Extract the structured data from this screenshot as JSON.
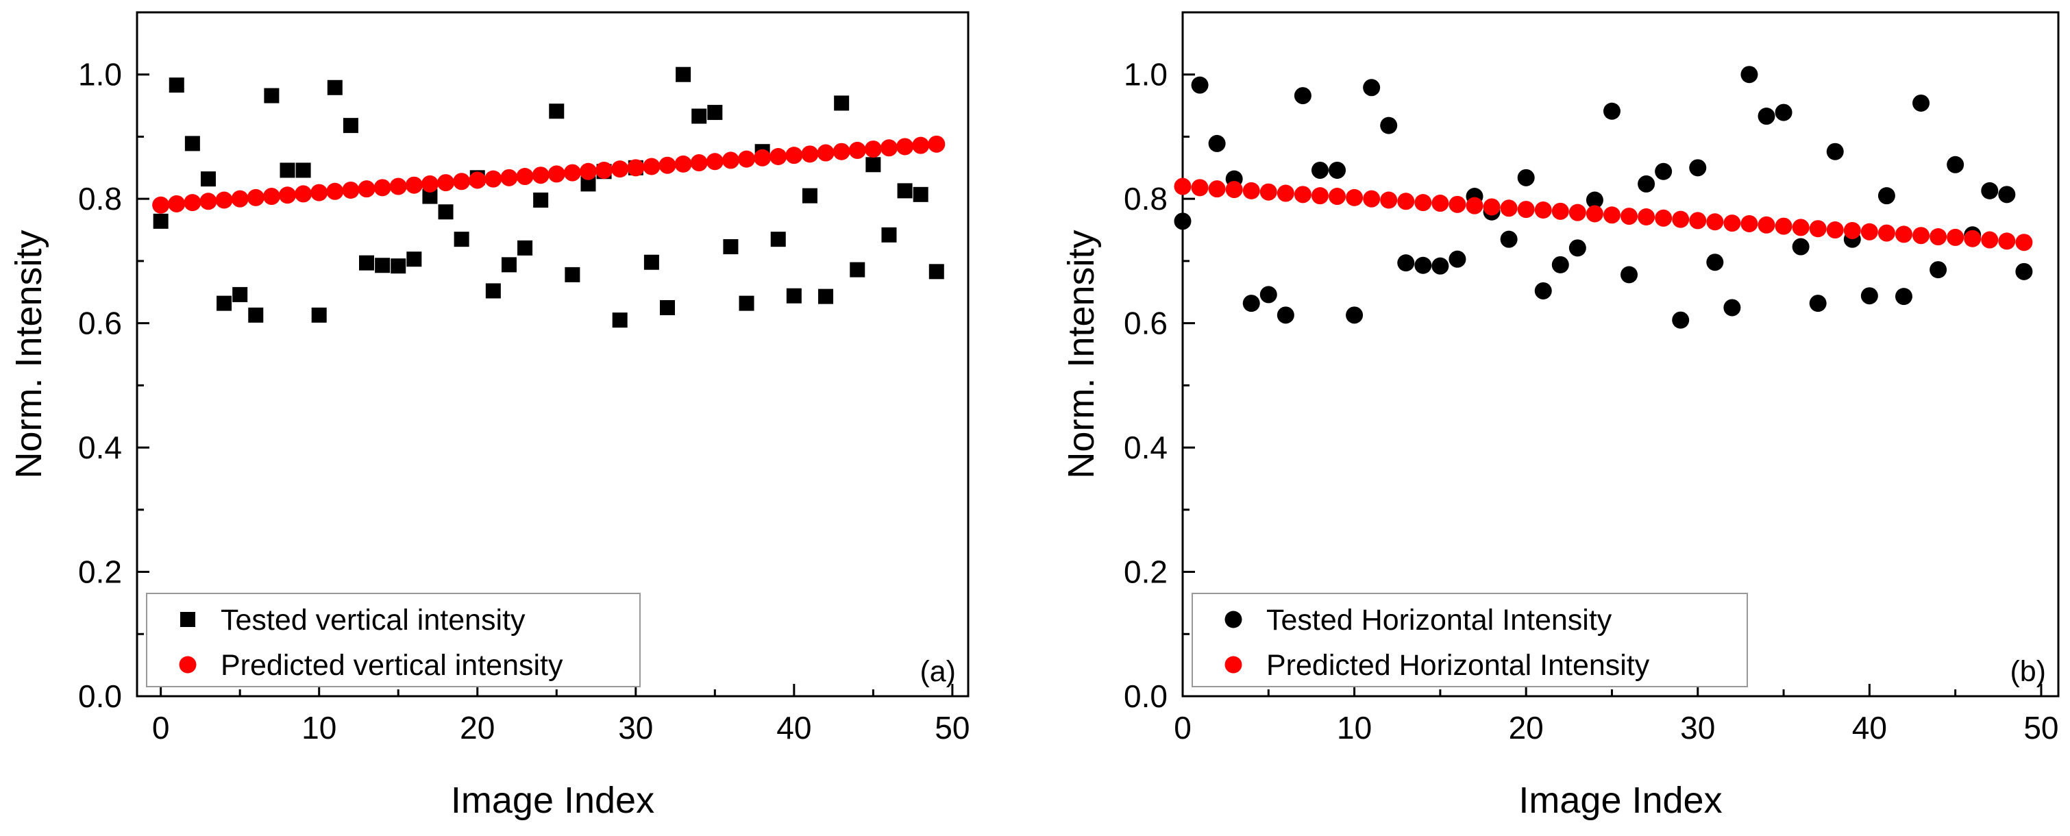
{
  "chart_data": [
    {
      "type": "scatter",
      "panel_label": "(a)",
      "xlabel": "Image Index",
      "ylabel": "Norm. Intensity",
      "xlim": [
        -1.5,
        51
      ],
      "ylim": [
        0.0,
        1.1
      ],
      "xticks": [
        0,
        10,
        20,
        30,
        40,
        50
      ],
      "xtick_labels": [
        "0",
        "10",
        "20",
        "30",
        "40",
        "50"
      ],
      "yticks": [
        0.0,
        0.2,
        0.4,
        0.6,
        0.8,
        1.0
      ],
      "ytick_labels": [
        "0.0",
        "0.2",
        "0.4",
        "0.6",
        "0.8",
        "1.0"
      ],
      "legend_position": "bottom-left",
      "series": [
        {
          "name": "Tested vertical intensity",
          "marker": "square",
          "color": "#000000",
          "x": [
            0,
            1,
            2,
            3,
            4,
            5,
            6,
            7,
            8,
            9,
            10,
            11,
            12,
            13,
            14,
            15,
            16,
            17,
            18,
            19,
            20,
            21,
            22,
            23,
            24,
            25,
            26,
            27,
            28,
            29,
            30,
            31,
            32,
            33,
            34,
            35,
            36,
            37,
            38,
            39,
            40,
            41,
            42,
            43,
            44,
            45,
            46,
            47,
            48,
            49
          ],
          "y": [
            0.764,
            0.983,
            0.889,
            0.832,
            0.632,
            0.646,
            0.613,
            0.966,
            0.846,
            0.846,
            0.613,
            0.979,
            0.918,
            0.697,
            0.693,
            0.692,
            0.703,
            0.804,
            0.779,
            0.735,
            0.834,
            0.652,
            0.694,
            0.721,
            0.798,
            0.941,
            0.678,
            0.824,
            0.844,
            0.605,
            0.85,
            0.698,
            0.625,
            1.0,
            0.933,
            0.939,
            0.723,
            0.632,
            0.876,
            0.735,
            0.644,
            0.805,
            0.643,
            0.954,
            0.686,
            0.855,
            0.742,
            0.813,
            0.807,
            0.683
          ]
        },
        {
          "name": "Predicted vertical intensity",
          "marker": "circle",
          "color": "#ff0000",
          "x": [
            0,
            1,
            2,
            3,
            4,
            5,
            6,
            7,
            8,
            9,
            10,
            11,
            12,
            13,
            14,
            15,
            16,
            17,
            18,
            19,
            20,
            21,
            22,
            23,
            24,
            25,
            26,
            27,
            28,
            29,
            30,
            31,
            32,
            33,
            34,
            35,
            36,
            37,
            38,
            39,
            40,
            41,
            42,
            43,
            44,
            45,
            46,
            47,
            48,
            49
          ],
          "y": [
            0.79,
            0.792,
            0.794,
            0.796,
            0.798,
            0.8,
            0.802,
            0.804,
            0.806,
            0.808,
            0.81,
            0.812,
            0.814,
            0.816,
            0.818,
            0.82,
            0.822,
            0.824,
            0.826,
            0.828,
            0.83,
            0.832,
            0.834,
            0.836,
            0.838,
            0.84,
            0.842,
            0.844,
            0.846,
            0.848,
            0.85,
            0.852,
            0.854,
            0.856,
            0.858,
            0.86,
            0.862,
            0.864,
            0.866,
            0.868,
            0.87,
            0.872,
            0.874,
            0.876,
            0.878,
            0.88,
            0.882,
            0.884,
            0.886,
            0.888
          ]
        }
      ]
    },
    {
      "type": "scatter",
      "panel_label": "(b)",
      "xlabel": "Image Index",
      "ylabel": "Norm. Intensity",
      "xlim": [
        0,
        51
      ],
      "ylim": [
        0.0,
        1.1
      ],
      "xticks": [
        0,
        10,
        20,
        30,
        40,
        50
      ],
      "xtick_labels": [
        "0",
        "10",
        "20",
        "30",
        "40",
        "50"
      ],
      "yticks": [
        0.0,
        0.2,
        0.4,
        0.6,
        0.8,
        1.0
      ],
      "ytick_labels": [
        "0.0",
        "0.2",
        "0.4",
        "0.6",
        "0.8",
        "1.0"
      ],
      "legend_position": "bottom-left",
      "series": [
        {
          "name": "Tested Horizontal Intensity",
          "marker": "circle",
          "color": "#000000",
          "x": [
            0,
            1,
            2,
            3,
            4,
            5,
            6,
            7,
            8,
            9,
            10,
            11,
            12,
            13,
            14,
            15,
            16,
            17,
            18,
            19,
            20,
            21,
            22,
            23,
            24,
            25,
            26,
            27,
            28,
            29,
            30,
            31,
            32,
            33,
            34,
            35,
            36,
            37,
            38,
            39,
            40,
            41,
            42,
            43,
            44,
            45,
            46,
            47,
            48,
            49
          ],
          "y": [
            0.764,
            0.983,
            0.889,
            0.832,
            0.632,
            0.646,
            0.613,
            0.966,
            0.846,
            0.846,
            0.613,
            0.979,
            0.918,
            0.697,
            0.693,
            0.692,
            0.703,
            0.804,
            0.779,
            0.735,
            0.834,
            0.652,
            0.694,
            0.721,
            0.798,
            0.941,
            0.678,
            0.824,
            0.844,
            0.605,
            0.85,
            0.698,
            0.625,
            1.0,
            0.933,
            0.939,
            0.723,
            0.632,
            0.876,
            0.735,
            0.644,
            0.805,
            0.643,
            0.954,
            0.686,
            0.855,
            0.742,
            0.813,
            0.807,
            0.683
          ]
        },
        {
          "name": "Predicted Horizontal Intensity",
          "marker": "circle",
          "color": "#ff0000",
          "x": [
            0,
            1,
            2,
            3,
            4,
            5,
            6,
            7,
            8,
            9,
            10,
            11,
            12,
            13,
            14,
            15,
            16,
            17,
            18,
            19,
            20,
            21,
            22,
            23,
            24,
            25,
            26,
            27,
            28,
            29,
            30,
            31,
            32,
            33,
            34,
            35,
            36,
            37,
            38,
            39,
            40,
            41,
            42,
            43,
            44,
            45,
            46,
            47,
            48,
            49
          ],
          "y": [
            0.82,
            0.818,
            0.816,
            0.815,
            0.813,
            0.811,
            0.809,
            0.807,
            0.805,
            0.804,
            0.802,
            0.8,
            0.798,
            0.796,
            0.794,
            0.793,
            0.791,
            0.789,
            0.787,
            0.785,
            0.783,
            0.782,
            0.78,
            0.778,
            0.776,
            0.774,
            0.772,
            0.771,
            0.769,
            0.767,
            0.765,
            0.763,
            0.761,
            0.76,
            0.758,
            0.756,
            0.754,
            0.752,
            0.75,
            0.749,
            0.747,
            0.745,
            0.743,
            0.741,
            0.739,
            0.738,
            0.736,
            0.734,
            0.732,
            0.73
          ]
        }
      ]
    }
  ]
}
